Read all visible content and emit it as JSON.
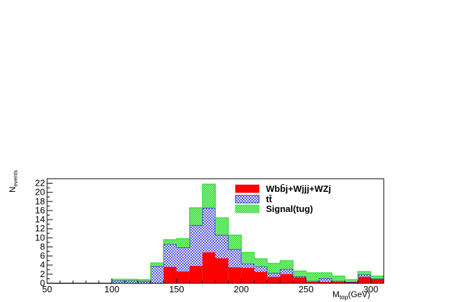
{
  "chart_data": {
    "type": "bar",
    "stacked": true,
    "histogram": true,
    "bin_edges": [
      50,
      60,
      70,
      80,
      90,
      100,
      110,
      120,
      130,
      140,
      150,
      160,
      170,
      180,
      190,
      200,
      210,
      220,
      230,
      240,
      250,
      260,
      270,
      280,
      290,
      300,
      310
    ],
    "series": [
      {
        "name": "Wbb̄j+Wjjj+WZj",
        "color": "#ff0000",
        "pattern": "solid",
        "values": [
          0,
          0,
          0,
          0,
          0,
          0,
          0,
          0,
          0,
          3.6,
          2.6,
          3.8,
          6.8,
          5.5,
          3.5,
          3.4,
          2.5,
          1.4,
          2.0,
          1.3,
          0.3,
          0.3,
          0.3,
          0.3,
          1.4,
          0.9
        ]
      },
      {
        "name": "tt̄",
        "color": "#0000cc",
        "pattern": "crosshatch",
        "values": [
          0,
          0,
          0,
          0,
          0,
          0.6,
          0.6,
          0.5,
          3.8,
          5.0,
          5.3,
          9.0,
          9.8,
          5.1,
          4.0,
          0.9,
          1.2,
          0.9,
          1.1,
          0.2,
          0.2,
          0.8,
          0.2,
          0,
          0.5,
          0.1
        ]
      },
      {
        "name": "Signal(tug)",
        "color": "#00dd00",
        "pattern": "dotted",
        "values": [
          0,
          0,
          0,
          0,
          0.05,
          0.3,
          0.3,
          0.3,
          0.7,
          1.0,
          1.9,
          3.8,
          5.2,
          3.8,
          3.1,
          2.5,
          1.7,
          2.1,
          1.9,
          1.2,
          1.8,
          1.2,
          1.1,
          0.5,
          0.7,
          0.6
        ]
      }
    ],
    "xlabel_main": "M",
    "xlabel_sub": "top",
    "xlabel_unit": "(GeV)",
    "ylabel_main": "N",
    "ylabel_sub": "events",
    "xlim": [
      50,
      310
    ],
    "ylim": [
      0,
      23
    ],
    "xticks": [
      50,
      100,
      150,
      200,
      250,
      300
    ],
    "yticks": [
      0,
      2,
      4,
      6,
      8,
      10,
      12,
      14,
      16,
      18,
      20,
      22
    ],
    "grid": false,
    "legend_position": "top-right"
  }
}
